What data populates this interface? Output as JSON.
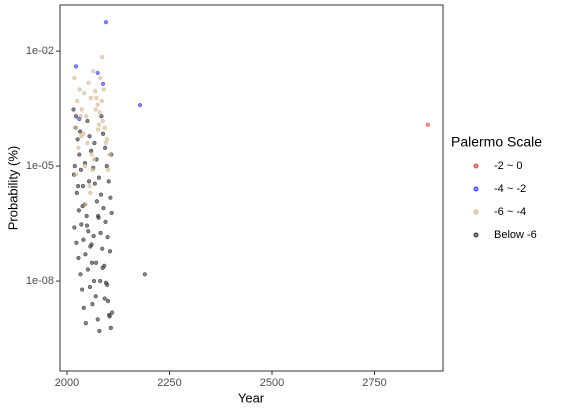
{
  "chart_data": {
    "type": "scatter",
    "x_label": "Year",
    "y_label": "Probability (%)",
    "legend_title": "Palermo Scale",
    "legend_position": "right",
    "y_scale": "log",
    "grid": false,
    "xlim": [
      1983,
      2917
    ],
    "xticks": [
      2000,
      2250,
      2500,
      2750
    ],
    "ylim": [
      4.5e-11,
      0.16
    ],
    "yticks": [
      {
        "value": 1e-08,
        "label": "1e-08"
      },
      {
        "value": 1e-05,
        "label": "1e-05"
      },
      {
        "value": 0.01,
        "label": "1e-02"
      }
    ],
    "series": [
      {
        "name": "-2 ~ 0",
        "color": "#e8474a",
        "x": [
          2880
        ],
        "values": [
          0.00012
        ]
      },
      {
        "name": "-4 ~ -2",
        "color": "#3b3bff",
        "x": [
          2095,
          2022,
          2075,
          2088,
          2178,
          2030
        ],
        "values": [
          0.057,
          0.004,
          0.0027,
          0.0014,
          0.00039,
          0.00017
        ]
      },
      {
        "name": "-6 ~ -4",
        "color": "#d9b78e",
        "x": [
          2018,
          2025,
          2031,
          2036,
          2042,
          2047,
          2053,
          2058,
          2064,
          2069,
          2075,
          2081,
          2086,
          2092,
          2098,
          2104,
          2020,
          2028,
          2035,
          2044,
          2050,
          2057,
          2063,
          2070,
          2078,
          2085,
          2090,
          2022,
          2033,
          2040,
          2055,
          2066,
          2072,
          2080,
          2087,
          2095,
          2100,
          2045,
          2060,
          2076
        ],
        "values": [
          0.002,
          0.0005,
          0.001,
          0.0003,
          0.0008,
          0.0002,
          0.0015,
          0.0006,
          0.003,
          0.0009,
          0.0004,
          0.002,
          0.007,
          0.0001,
          5e-05,
          2e-05,
          0.0001,
          3e-05,
          6e-05,
          1e-05,
          4e-05,
          2e-06,
          8e-06,
          0.0003,
          0.00012,
          0.0005,
          0.001,
          6e-06,
          0.0002,
          7e-05,
          3e-06,
          1.5e-05,
          0.0006,
          0.00025,
          0.00015,
          4e-05,
          8e-06,
          1e-06,
          2e-05,
          9e-05
        ]
      },
      {
        "name": "Below -6",
        "color": "#333333",
        "x": [
          2016,
          2021,
          2026,
          2030,
          2034,
          2039,
          2043,
          2048,
          2052,
          2057,
          2061,
          2066,
          2070,
          2075,
          2079,
          2084,
          2088,
          2093,
          2097,
          2102,
          2106,
          2109,
          2018,
          2023,
          2028,
          2033,
          2037,
          2041,
          2046,
          2050,
          2055,
          2059,
          2064,
          2068,
          2073,
          2077,
          2082,
          2086,
          2091,
          2095,
          2100,
          2104,
          2108,
          2017,
          2024,
          2029,
          2035,
          2040,
          2045,
          2051,
          2056,
          2062,
          2067,
          2072,
          2078,
          2083,
          2089,
          2094,
          2099,
          2105,
          2019,
          2027,
          2038,
          2049,
          2060,
          2071,
          2081,
          2092,
          2103,
          2107,
          2022,
          2032,
          2044,
          2054,
          2065,
          2076,
          2087,
          2098,
          2110,
          2190
        ],
        "values": [
          0.0003,
          0.0001,
          5e-05,
          2e-05,
          8e-06,
          3e-06,
          1e-06,
          5e-07,
          2e-07,
          8e-08,
          3e-08,
          1e-08,
          4e-09,
          1e-09,
          5e-10,
          0.0002,
          7e-05,
          3e-05,
          1e-05,
          4e-06,
          1.5e-06,
          6e-07,
          2.5e-07,
          1e-07,
          4e-08,
          1.5e-08,
          6e-09,
          2e-09,
          8e-10,
          0.00015,
          6e-05,
          2.5e-05,
          9e-06,
          3.5e-06,
          1.2e-06,
          4.5e-07,
          1.8e-07,
          7e-08,
          2.5e-08,
          9e-09,
          3e-09,
          1.2e-09,
          2e-05,
          6e-06,
          2e-06,
          7e-07,
          3e-07,
          1.2e-07,
          5e-08,
          2e-08,
          7e-09,
          2.5e-09,
          4e-05,
          1.5e-05,
          5e-06,
          1.8e-06,
          8e-07,
          3.5e-07,
          1.4e-07,
          6e-08,
          1e-05,
          3e-06,
          9e-07,
          2.8e-07,
          9e-08,
          3e-08,
          1e-08,
          3.5e-09,
          1.3e-09,
          6e-10,
          0.0002,
          8e-05,
          1.2e-05,
          4e-06,
          1.5e-07,
          5e-07,
          2.2e-08,
          8e-09,
          1.5e-09,
          1.5e-08
        ]
      }
    ]
  }
}
